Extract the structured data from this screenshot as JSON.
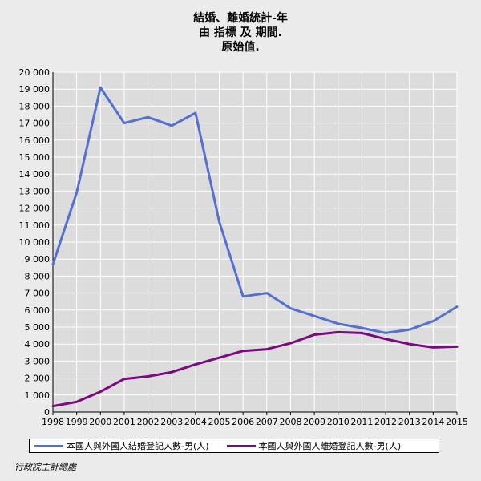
{
  "title": {
    "line1": "結婚、離婚統計-年",
    "line2": "由 指標 及 期間.",
    "line3": "原始值."
  },
  "source": "行政院主計總處",
  "colors": {
    "plot_background": "#dcdcdc",
    "grid": "#ffffff",
    "series1": "#5470d0",
    "series2": "#7a0a80"
  },
  "chart_data": {
    "type": "line",
    "ylabel": "",
    "ylim": [
      0,
      20000
    ],
    "yticks": [
      0,
      1000,
      2000,
      3000,
      4000,
      5000,
      6000,
      7000,
      8000,
      9000,
      10000,
      11000,
      12000,
      13000,
      14000,
      15000,
      16000,
      17000,
      18000,
      19000,
      20000
    ],
    "ytick_labels": [
      "0",
      "1 000",
      "2 000",
      "3 000",
      "4 000",
      "5 000",
      "6 000",
      "7 000",
      "8 000",
      "9 000",
      "10 000",
      "11 000",
      "12 000",
      "13 000",
      "14 000",
      "15 000",
      "16 000",
      "17 000",
      "18 000",
      "19 000",
      "20 000"
    ],
    "x": [
      "1998",
      "1999",
      "2000",
      "2001",
      "2002",
      "2003",
      "2004",
      "2005",
      "2006",
      "2007",
      "2008",
      "2009",
      "2010",
      "2011",
      "2012",
      "2013",
      "2014",
      "2015"
    ],
    "grid": true,
    "legend_position": "bottom",
    "series": [
      {
        "name": "本國人與外國人結婚登記人數-男(人)",
        "color": "#5470d0",
        "values": [
          8700,
          12900,
          19100,
          17000,
          17350,
          16850,
          17600,
          11200,
          6800,
          7000,
          6100,
          5650,
          5200,
          4950,
          4650,
          4850,
          5350,
          6200
        ]
      },
      {
        "name": "本國人與外國人離婚登記人數-男(人)",
        "color": "#7a0a80",
        "values": [
          350,
          600,
          1200,
          1950,
          2100,
          2350,
          2800,
          3200,
          3600,
          3700,
          4050,
          4550,
          4700,
          4650,
          4300,
          4000,
          3800,
          3850
        ]
      }
    ]
  }
}
